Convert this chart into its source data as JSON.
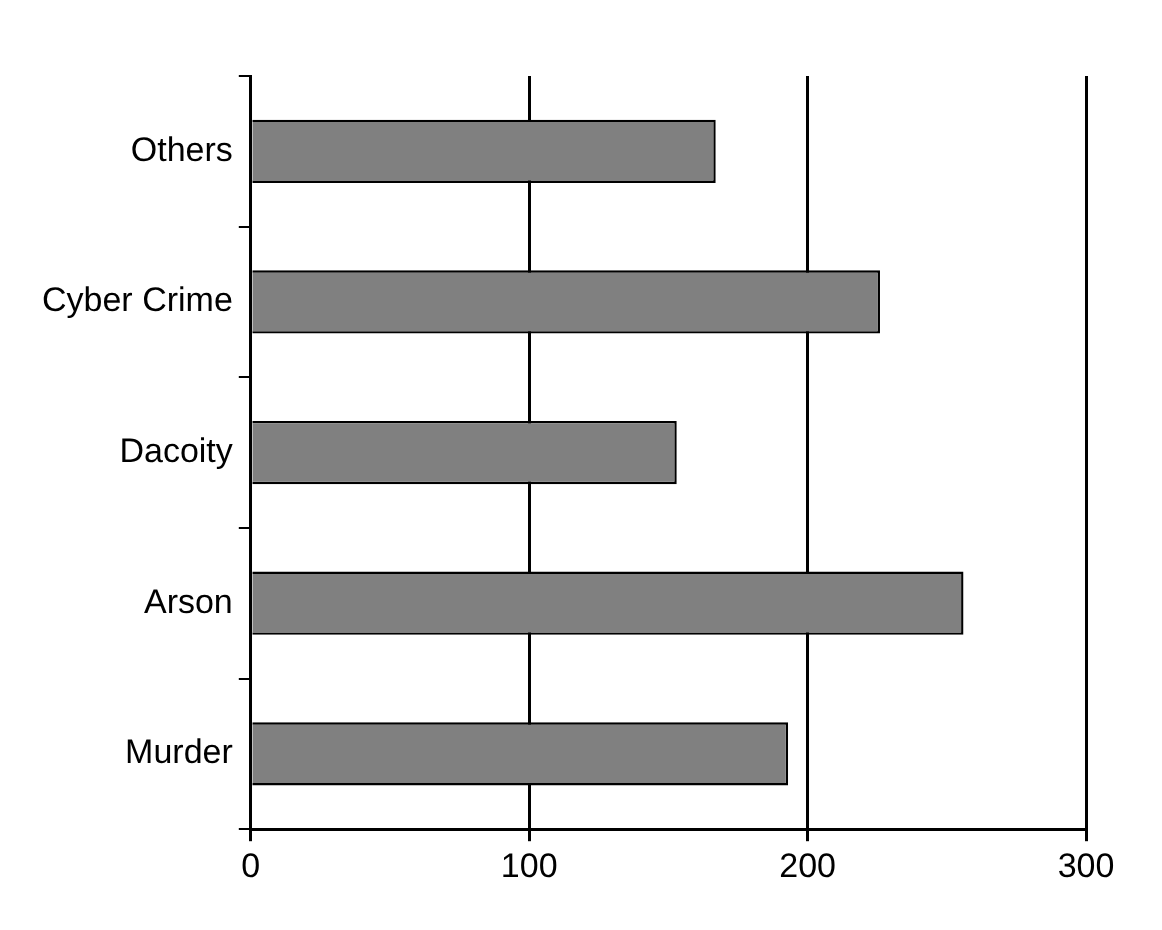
{
  "chart_data": {
    "type": "bar",
    "orientation": "horizontal",
    "categories": [
      "Others",
      "Cyber Crime",
      "Dacoity",
      "Arson",
      "Murder"
    ],
    "values": [
      167,
      226,
      153,
      256,
      193
    ],
    "color": "#808080",
    "xlim": [
      0,
      300
    ],
    "xticks": [
      0,
      100,
      200,
      300
    ],
    "grid": "x",
    "legend": false
  }
}
